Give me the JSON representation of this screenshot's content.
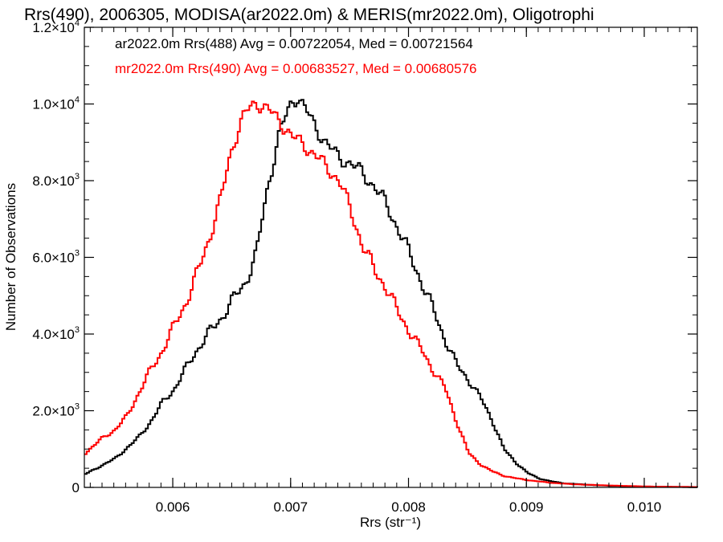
{
  "chart_data": {
    "type": "line",
    "title": "Rrs(490), 2006305, MODISA(ar2022.0m) & MERIS(mr2022.0m), Oligotrophi",
    "xlabel": "Rrs (str⁻¹)",
    "ylabel": "Number of Observations",
    "xlim": [
      0.00525,
      0.01045
    ],
    "ylim": [
      0,
      12000
    ],
    "x_ticks": [
      {
        "value": 0.006,
        "label": "0.006"
      },
      {
        "value": 0.007,
        "label": "0.007"
      },
      {
        "value": 0.008,
        "label": "0.008"
      },
      {
        "value": 0.009,
        "label": "0.009"
      },
      {
        "value": 0.01,
        "label": "0.010"
      }
    ],
    "y_ticks": [
      {
        "value": 0,
        "mant": "0",
        "exp": ""
      },
      {
        "value": 2000,
        "mant": "2.0×10",
        "exp": "3"
      },
      {
        "value": 4000,
        "mant": "4.0×10",
        "exp": "3"
      },
      {
        "value": 6000,
        "mant": "6.0×10",
        "exp": "3"
      },
      {
        "value": 8000,
        "mant": "8.0×10",
        "exp": "3"
      },
      {
        "value": 10000,
        "mant": "1.0×10",
        "exp": "4"
      },
      {
        "value": 12000,
        "mant": "1.2×10",
        "exp": "4"
      }
    ],
    "legend": [
      {
        "text": "ar2022.0m Rrs(488) Avg = 0.00722054, Med = 0.00721564",
        "color": "#000000"
      },
      {
        "text": "mr2022.0m Rrs(490) Avg = 0.00683527, Med = 0.00680576",
        "color": "#ff0000"
      }
    ],
    "series": [
      {
        "color": "#000000",
        "x": [
          0.00525,
          0.0055,
          0.0057,
          0.0058,
          0.0059,
          0.006,
          0.0061,
          0.0062,
          0.0063,
          0.0064,
          0.0065,
          0.0066,
          0.0067,
          0.0068,
          0.0069,
          0.007,
          0.00705,
          0.0071,
          0.0072,
          0.0073,
          0.0074,
          0.0075,
          0.0076,
          0.0077,
          0.0078,
          0.0079,
          0.008,
          0.0081,
          0.0082,
          0.0083,
          0.0084,
          0.0085,
          0.0086,
          0.0087,
          0.0088,
          0.0089,
          0.009,
          0.0091,
          0.0092,
          0.0093,
          0.0095,
          0.0097,
          0.01,
          0.0103,
          0.01045
        ],
        "y": [
          350,
          750,
          1300,
          1700,
          2200,
          2550,
          3100,
          3600,
          4050,
          4400,
          4900,
          5300,
          6100,
          7900,
          9300,
          10050,
          10200,
          9950,
          9400,
          8950,
          8600,
          8450,
          8200,
          7850,
          7400,
          6750,
          6100,
          5350,
          4650,
          3850,
          3200,
          2800,
          2350,
          1750,
          1000,
          650,
          380,
          230,
          160,
          110,
          70,
          40,
          20,
          10,
          5
        ]
      },
      {
        "color": "#ff0000",
        "x": [
          0.00525,
          0.0054,
          0.0055,
          0.0056,
          0.0057,
          0.0058,
          0.0059,
          0.006,
          0.0061,
          0.0062,
          0.0063,
          0.0064,
          0.0065,
          0.0066,
          0.0067,
          0.0068,
          0.0069,
          0.007,
          0.0071,
          0.0072,
          0.0073,
          0.0074,
          0.0075,
          0.0076,
          0.0077,
          0.0078,
          0.0079,
          0.008,
          0.0081,
          0.0082,
          0.0083,
          0.0084,
          0.0085,
          0.0086,
          0.0087,
          0.0088,
          0.0089,
          0.009,
          0.0092,
          0.0094,
          0.0097,
          0.01,
          0.01045
        ],
        "y": [
          900,
          1300,
          1500,
          1850,
          2450,
          3050,
          3550,
          4200,
          4800,
          5600,
          6500,
          7550,
          8950,
          9750,
          10050,
          9850,
          9550,
          9150,
          8950,
          8650,
          8350,
          8000,
          7250,
          6300,
          5700,
          5200,
          4600,
          4050,
          3600,
          3050,
          2600,
          1700,
          900,
          600,
          420,
          300,
          240,
          190,
          120,
          80,
          50,
          25,
          10
        ]
      }
    ]
  }
}
